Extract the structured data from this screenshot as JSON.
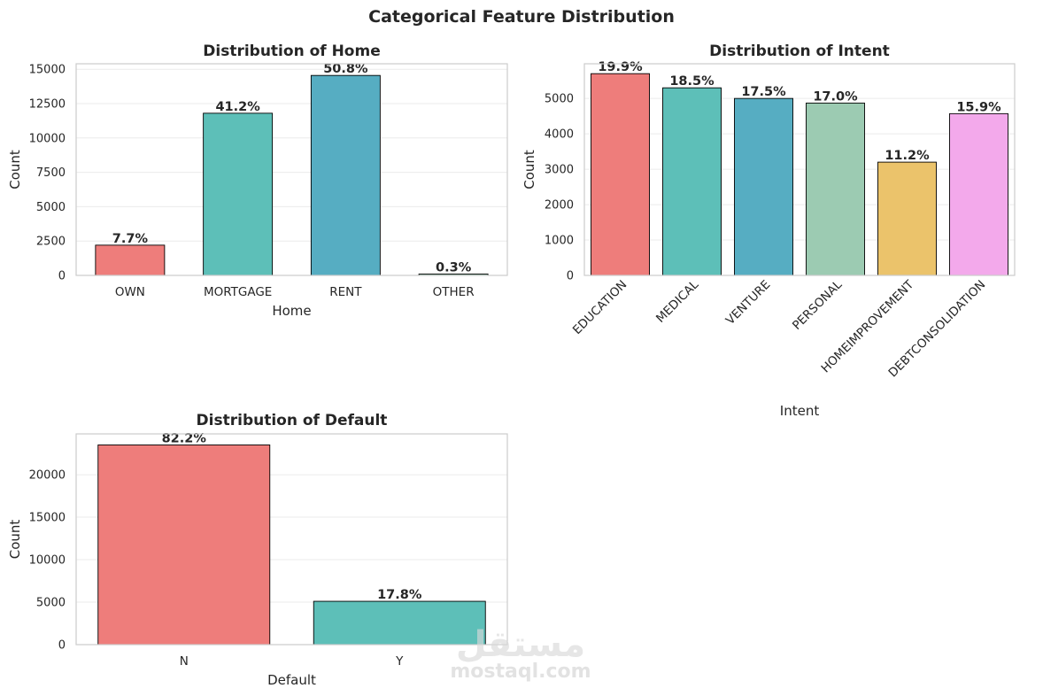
{
  "figure": {
    "suptitle": "Categorical Feature Distribution",
    "watermark": {
      "logo": "مستقل",
      "text": "mostaql.com"
    }
  },
  "chart_data": [
    {
      "type": "bar",
      "title": "Distribution of Home",
      "xlabel": "Home",
      "ylabel": "Count",
      "categories": [
        "OWN",
        "MORTGAGE",
        "RENT",
        "OTHER"
      ],
      "values": [
        2200,
        11800,
        14550,
        100
      ],
      "percent_labels": [
        "7.7%",
        "41.2%",
        "50.8%",
        "0.3%"
      ],
      "colors": [
        "#ee7d7b",
        "#5dbfb8",
        "#56adc2",
        "#9ccbb2"
      ],
      "ylim": [
        0,
        15400
      ],
      "yticks": [
        0,
        2500,
        5000,
        7500,
        10000,
        12500,
        15000
      ],
      "grid": true,
      "xtick_rotation": 0
    },
    {
      "type": "bar",
      "title": "Distribution of Intent",
      "xlabel": "Intent",
      "ylabel": "Count",
      "categories": [
        "EDUCATION",
        "MEDICAL",
        "VENTURE",
        "PERSONAL",
        "HOMEIMPROVEMENT",
        "DEBTCONSOLIDATION"
      ],
      "values": [
        5700,
        5300,
        5000,
        4870,
        3200,
        4570
      ],
      "percent_labels": [
        "19.9%",
        "18.5%",
        "17.5%",
        "17.0%",
        "11.2%",
        "15.9%"
      ],
      "colors": [
        "#ee7d7b",
        "#5dbfb8",
        "#56adc2",
        "#9ccbb2",
        "#ebc36b",
        "#f3a9eb"
      ],
      "ylim": [
        0,
        5980
      ],
      "yticks": [
        0,
        1000,
        2000,
        3000,
        4000,
        5000
      ],
      "grid": true,
      "xtick_rotation": -45
    },
    {
      "type": "bar",
      "title": "Distribution of Default",
      "xlabel": "Default",
      "ylabel": "Count",
      "categories": [
        "N",
        "Y"
      ],
      "values": [
        23500,
        5100
      ],
      "percent_labels": [
        "82.2%",
        "17.8%"
      ],
      "colors": [
        "#ee7d7b",
        "#5dbfb8"
      ],
      "ylim": [
        0,
        24800
      ],
      "yticks": [
        0,
        5000,
        10000,
        15000,
        20000
      ],
      "grid": true,
      "xtick_rotation": 0
    }
  ]
}
